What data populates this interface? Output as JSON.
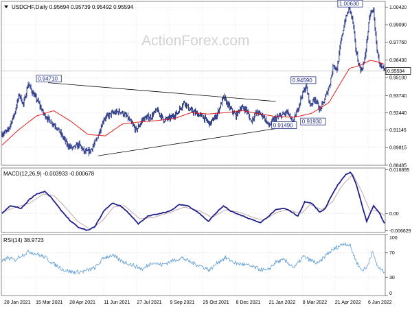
{
  "chart_data": [
    {
      "type": "bar",
      "title": "USDCHF,Daily",
      "ohlc": "0.95694 0.95739 0.95492 0.95594",
      "watermark": "ActionForex.com",
      "ylim": [
        0.8848,
        1.0085
      ],
      "yticks": [
        "1.00420",
        "0.99090",
        "0.97760",
        "0.96430",
        "0.95100",
        "0.93740",
        "0.92440",
        "0.91145",
        "0.89815",
        "0.88485"
      ],
      "last_price": "0.95594",
      "price_key": [
        {
          "i": 0,
          "v": 0.9085
        },
        {
          "i": 8,
          "v": 0.9105
        },
        {
          "i": 18,
          "v": 0.9235
        },
        {
          "i": 25,
          "v": 0.9385
        },
        {
          "i": 31,
          "v": 0.9305
        },
        {
          "i": 38,
          "v": 0.9465
        },
        {
          "i": 45,
          "v": 0.939
        },
        {
          "i": 52,
          "v": 0.933
        },
        {
          "i": 60,
          "v": 0.924
        },
        {
          "i": 68,
          "v": 0.919
        },
        {
          "i": 78,
          "v": 0.9145
        },
        {
          "i": 88,
          "v": 0.9065
        },
        {
          "i": 95,
          "v": 0.9
        },
        {
          "i": 103,
          "v": 0.8975
        },
        {
          "i": 112,
          "v": 0.9005
        },
        {
          "i": 120,
          "v": 0.8945
        },
        {
          "i": 128,
          "v": 0.8955
        },
        {
          "i": 137,
          "v": 0.9035
        },
        {
          "i": 148,
          "v": 0.92
        },
        {
          "i": 160,
          "v": 0.924
        },
        {
          "i": 172,
          "v": 0.9255
        },
        {
          "i": 182,
          "v": 0.921
        },
        {
          "i": 195,
          "v": 0.911
        },
        {
          "i": 205,
          "v": 0.92
        },
        {
          "i": 217,
          "v": 0.9215
        },
        {
          "i": 225,
          "v": 0.9265
        },
        {
          "i": 235,
          "v": 0.919
        },
        {
          "i": 245,
          "v": 0.9205
        },
        {
          "i": 255,
          "v": 0.9245
        },
        {
          "i": 265,
          "v": 0.933
        },
        {
          "i": 272,
          "v": 0.927
        },
        {
          "i": 282,
          "v": 0.924
        },
        {
          "i": 292,
          "v": 0.9215
        },
        {
          "i": 302,
          "v": 0.916
        },
        {
          "i": 312,
          "v": 0.9225
        },
        {
          "i": 322,
          "v": 0.936
        },
        {
          "i": 332,
          "v": 0.9275
        },
        {
          "i": 340,
          "v": 0.922
        },
        {
          "i": 347,
          "v": 0.9285
        },
        {
          "i": 355,
          "v": 0.927
        },
        {
          "i": 362,
          "v": 0.918
        },
        {
          "i": 370,
          "v": 0.925
        },
        {
          "i": 380,
          "v": 0.922
        },
        {
          "i": 388,
          "v": 0.9145
        },
        {
          "i": 395,
          "v": 0.9195
        },
        {
          "i": 405,
          "v": 0.922
        },
        {
          "i": 415,
          "v": 0.925
        },
        {
          "i": 422,
          "v": 0.9165
        },
        {
          "i": 428,
          "v": 0.924
        },
        {
          "i": 435,
          "v": 0.9365
        },
        {
          "i": 442,
          "v": 0.9445
        },
        {
          "i": 448,
          "v": 0.93
        },
        {
          "i": 455,
          "v": 0.9355
        },
        {
          "i": 462,
          "v": 0.9265
        },
        {
          "i": 468,
          "v": 0.933
        },
        {
          "i": 476,
          "v": 0.945
        },
        {
          "i": 482,
          "v": 0.961
        },
        {
          "i": 487,
          "v": 0.957
        },
        {
          "i": 492,
          "v": 0.976
        },
        {
          "i": 498,
          "v": 0.993
        },
        {
          "i": 505,
          "v": 1.004
        },
        {
          "i": 510,
          "v": 0.993
        },
        {
          "i": 514,
          "v": 0.973
        },
        {
          "i": 518,
          "v": 0.962
        },
        {
          "i": 522,
          "v": 0.956
        },
        {
          "i": 527,
          "v": 0.964
        },
        {
          "i": 531,
          "v": 0.982
        },
        {
          "i": 535,
          "v": 0.999
        },
        {
          "i": 540,
          "v": 1.002
        },
        {
          "i": 544,
          "v": 0.976
        },
        {
          "i": 548,
          "v": 0.963
        },
        {
          "i": 552,
          "v": 0.9575
        },
        {
          "i": 556,
          "v": 0.956
        }
      ],
      "sma_key": [
        {
          "i": 0,
          "v": 0.9
        },
        {
          "i": 25,
          "v": 0.912
        },
        {
          "i": 50,
          "v": 0.922
        },
        {
          "i": 75,
          "v": 0.926
        },
        {
          "i": 100,
          "v": 0.918
        },
        {
          "i": 125,
          "v": 0.908
        },
        {
          "i": 150,
          "v": 0.907
        },
        {
          "i": 175,
          "v": 0.916
        },
        {
          "i": 200,
          "v": 0.9175
        },
        {
          "i": 225,
          "v": 0.9185
        },
        {
          "i": 250,
          "v": 0.92
        },
        {
          "i": 275,
          "v": 0.9245
        },
        {
          "i": 300,
          "v": 0.9235
        },
        {
          "i": 325,
          "v": 0.9245
        },
        {
          "i": 350,
          "v": 0.926
        },
        {
          "i": 375,
          "v": 0.9235
        },
        {
          "i": 400,
          "v": 0.9215
        },
        {
          "i": 425,
          "v": 0.921
        },
        {
          "i": 450,
          "v": 0.924
        },
        {
          "i": 475,
          "v": 0.932
        },
        {
          "i": 490,
          "v": 0.945
        },
        {
          "i": 505,
          "v": 0.958
        },
        {
          "i": 520,
          "v": 0.96
        },
        {
          "i": 535,
          "v": 0.964
        },
        {
          "i": 545,
          "v": 0.963
        },
        {
          "i": 556,
          "v": 0.961
        }
      ],
      "triangle": {
        "upper": [
          {
            "i": 67,
            "v": 0.9471
          },
          {
            "i": 398,
            "v": 0.933
          }
        ],
        "lower": [
          {
            "i": 140,
            "v": 0.892
          },
          {
            "i": 405,
            "v": 0.913
          }
        ]
      },
      "labels": [
        {
          "text": "0.94710",
          "i": 50,
          "v": 0.9492
        },
        {
          "text": "1.00630",
          "i": 488,
          "v": 1.0058
        },
        {
          "text": "0.94590",
          "i": 420,
          "v": 0.948
        },
        {
          "text": "0.91490",
          "i": 392,
          "v": 0.914
        },
        {
          "text": "0.91930",
          "i": 434,
          "v": 0.9168
        }
      ],
      "x_labels": [
        {
          "text": "28 Jan 2021",
          "i": 3
        },
        {
          "text": "15 Mar 2021",
          "i": 49
        },
        {
          "text": "28 Apr 2021",
          "i": 98
        },
        {
          "text": "11 Jun 2021",
          "i": 148
        },
        {
          "text": "27 Jul 2021",
          "i": 196
        },
        {
          "text": "9 Sep 2021",
          "i": 244
        },
        {
          "text": "25 Oct 2021",
          "i": 292
        },
        {
          "text": "8 Dec 2021",
          "i": 340
        },
        {
          "text": "21 Jan 2022",
          "i": 388
        },
        {
          "text": "8 Mar 2022",
          "i": 437
        },
        {
          "text": "21 Apr 2022",
          "i": 484
        },
        {
          "text": "6 Jun 2022",
          "i": 532
        }
      ]
    },
    {
      "type": "line",
      "title": "MACD(12,26,9) -0.003933 -0.000678",
      "ylim": [
        -0.00725,
        0.0175
      ],
      "yticks": [
        "0.016895",
        "0.00",
        "-0.006629"
      ],
      "macd_key": [
        {
          "i": 0,
          "v": 0.0
        },
        {
          "i": 12,
          "v": 0.003
        },
        {
          "i": 28,
          "v": 0.002
        },
        {
          "i": 40,
          "v": 0.0055
        },
        {
          "i": 50,
          "v": 0.0075
        },
        {
          "i": 62,
          "v": 0.0085
        },
        {
          "i": 72,
          "v": 0.006
        },
        {
          "i": 85,
          "v": 0.0015
        },
        {
          "i": 100,
          "v": -0.003
        },
        {
          "i": 112,
          "v": -0.0055
        },
        {
          "i": 125,
          "v": -0.0065
        },
        {
          "i": 135,
          "v": -0.005
        },
        {
          "i": 148,
          "v": 0.001
        },
        {
          "i": 160,
          "v": 0.004
        },
        {
          "i": 172,
          "v": 0.003
        },
        {
          "i": 185,
          "v": 0.0
        },
        {
          "i": 198,
          "v": -0.004
        },
        {
          "i": 212,
          "v": -0.001
        },
        {
          "i": 228,
          "v": 0.0
        },
        {
          "i": 245,
          "v": 0.001
        },
        {
          "i": 258,
          "v": 0.0035
        },
        {
          "i": 270,
          "v": 0.003
        },
        {
          "i": 285,
          "v": 0.0005
        },
        {
          "i": 300,
          "v": -0.003
        },
        {
          "i": 312,
          "v": 0.0005
        },
        {
          "i": 322,
          "v": 0.003
        },
        {
          "i": 332,
          "v": 0.001
        },
        {
          "i": 345,
          "v": -0.0005
        },
        {
          "i": 360,
          "v": -0.002
        },
        {
          "i": 375,
          "v": -0.0035
        },
        {
          "i": 388,
          "v": -0.001
        },
        {
          "i": 398,
          "v": 0.0015
        },
        {
          "i": 410,
          "v": 0.002
        },
        {
          "i": 420,
          "v": 0.0008
        },
        {
          "i": 430,
          "v": -0.001
        },
        {
          "i": 440,
          "v": 0.0045
        },
        {
          "i": 450,
          "v": 0.004
        },
        {
          "i": 462,
          "v": 0.0005
        },
        {
          "i": 470,
          "v": 0.002
        },
        {
          "i": 478,
          "v": 0.0065
        },
        {
          "i": 488,
          "v": 0.011
        },
        {
          "i": 500,
          "v": 0.015
        },
        {
          "i": 507,
          "v": 0.016
        },
        {
          "i": 514,
          "v": 0.012
        },
        {
          "i": 522,
          "v": 0.0045
        },
        {
          "i": 530,
          "v": -0.003
        },
        {
          "i": 540,
          "v": 0.003
        },
        {
          "i": 548,
          "v": 0.0005
        },
        {
          "i": 556,
          "v": -0.0039
        }
      ],
      "signal_key": [
        {
          "i": 0,
          "v": 0.0005
        },
        {
          "i": 20,
          "v": 0.0025
        },
        {
          "i": 40,
          "v": 0.004
        },
        {
          "i": 60,
          "v": 0.0075
        },
        {
          "i": 75,
          "v": 0.007
        },
        {
          "i": 90,
          "v": 0.003
        },
        {
          "i": 110,
          "v": -0.003
        },
        {
          "i": 128,
          "v": -0.006
        },
        {
          "i": 145,
          "v": -0.003
        },
        {
          "i": 162,
          "v": 0.0025
        },
        {
          "i": 178,
          "v": 0.003
        },
        {
          "i": 200,
          "v": -0.002
        },
        {
          "i": 220,
          "v": -0.0015
        },
        {
          "i": 245,
          "v": 0.0005
        },
        {
          "i": 265,
          "v": 0.0025
        },
        {
          "i": 288,
          "v": 0.001
        },
        {
          "i": 305,
          "v": -0.0015
        },
        {
          "i": 325,
          "v": 0.0015
        },
        {
          "i": 345,
          "v": 0.0005
        },
        {
          "i": 365,
          "v": -0.0015
        },
        {
          "i": 380,
          "v": -0.0025
        },
        {
          "i": 400,
          "v": 0.0005
        },
        {
          "i": 415,
          "v": 0.0015
        },
        {
          "i": 435,
          "v": 0.0
        },
        {
          "i": 448,
          "v": 0.0035
        },
        {
          "i": 465,
          "v": 0.0015
        },
        {
          "i": 480,
          "v": 0.0045
        },
        {
          "i": 495,
          "v": 0.011
        },
        {
          "i": 510,
          "v": 0.015
        },
        {
          "i": 522,
          "v": 0.009
        },
        {
          "i": 535,
          "v": 0.001
        },
        {
          "i": 545,
          "v": 0.001
        },
        {
          "i": 556,
          "v": -0.0007
        }
      ]
    },
    {
      "type": "line",
      "title": "RSI(14) 38.9723",
      "ylim": [
        0,
        100
      ],
      "yticks": [
        "100",
        "70",
        "30",
        "0"
      ],
      "levels": [
        70,
        30
      ],
      "rsi_key": [
        {
          "i": 0,
          "v": 55
        },
        {
          "i": 8,
          "v": 62
        },
        {
          "i": 18,
          "v": 58
        },
        {
          "i": 28,
          "v": 66
        },
        {
          "i": 40,
          "v": 72
        },
        {
          "i": 50,
          "v": 68
        },
        {
          "i": 62,
          "v": 63
        },
        {
          "i": 75,
          "v": 52
        },
        {
          "i": 90,
          "v": 42
        },
        {
          "i": 105,
          "v": 38
        },
        {
          "i": 120,
          "v": 40
        },
        {
          "i": 135,
          "v": 45
        },
        {
          "i": 148,
          "v": 62
        },
        {
          "i": 160,
          "v": 66
        },
        {
          "i": 175,
          "v": 56
        },
        {
          "i": 190,
          "v": 50
        },
        {
          "i": 205,
          "v": 43
        },
        {
          "i": 218,
          "v": 55
        },
        {
          "i": 232,
          "v": 50
        },
        {
          "i": 248,
          "v": 57
        },
        {
          "i": 262,
          "v": 62
        },
        {
          "i": 275,
          "v": 54
        },
        {
          "i": 290,
          "v": 48
        },
        {
          "i": 302,
          "v": 42
        },
        {
          "i": 315,
          "v": 56
        },
        {
          "i": 325,
          "v": 62
        },
        {
          "i": 340,
          "v": 53
        },
        {
          "i": 355,
          "v": 50
        },
        {
          "i": 370,
          "v": 45
        },
        {
          "i": 385,
          "v": 40
        },
        {
          "i": 398,
          "v": 55
        },
        {
          "i": 410,
          "v": 58
        },
        {
          "i": 425,
          "v": 46
        },
        {
          "i": 438,
          "v": 64
        },
        {
          "i": 448,
          "v": 58
        },
        {
          "i": 460,
          "v": 52
        },
        {
          "i": 472,
          "v": 68
        },
        {
          "i": 485,
          "v": 78
        },
        {
          "i": 498,
          "v": 86
        },
        {
          "i": 506,
          "v": 82
        },
        {
          "i": 514,
          "v": 58
        },
        {
          "i": 522,
          "v": 42
        },
        {
          "i": 530,
          "v": 45
        },
        {
          "i": 538,
          "v": 72
        },
        {
          "i": 545,
          "v": 50
        },
        {
          "i": 550,
          "v": 42
        },
        {
          "i": 556,
          "v": 39
        }
      ]
    }
  ],
  "colors": {
    "price": "#1f2d80",
    "sma": "#e31a1a",
    "macd": "#1f1f8c",
    "signal": "#c0a0a0",
    "rsi": "#5b9bd5",
    "label_box": "#1f2d80",
    "grid": "#d8d8d8"
  }
}
